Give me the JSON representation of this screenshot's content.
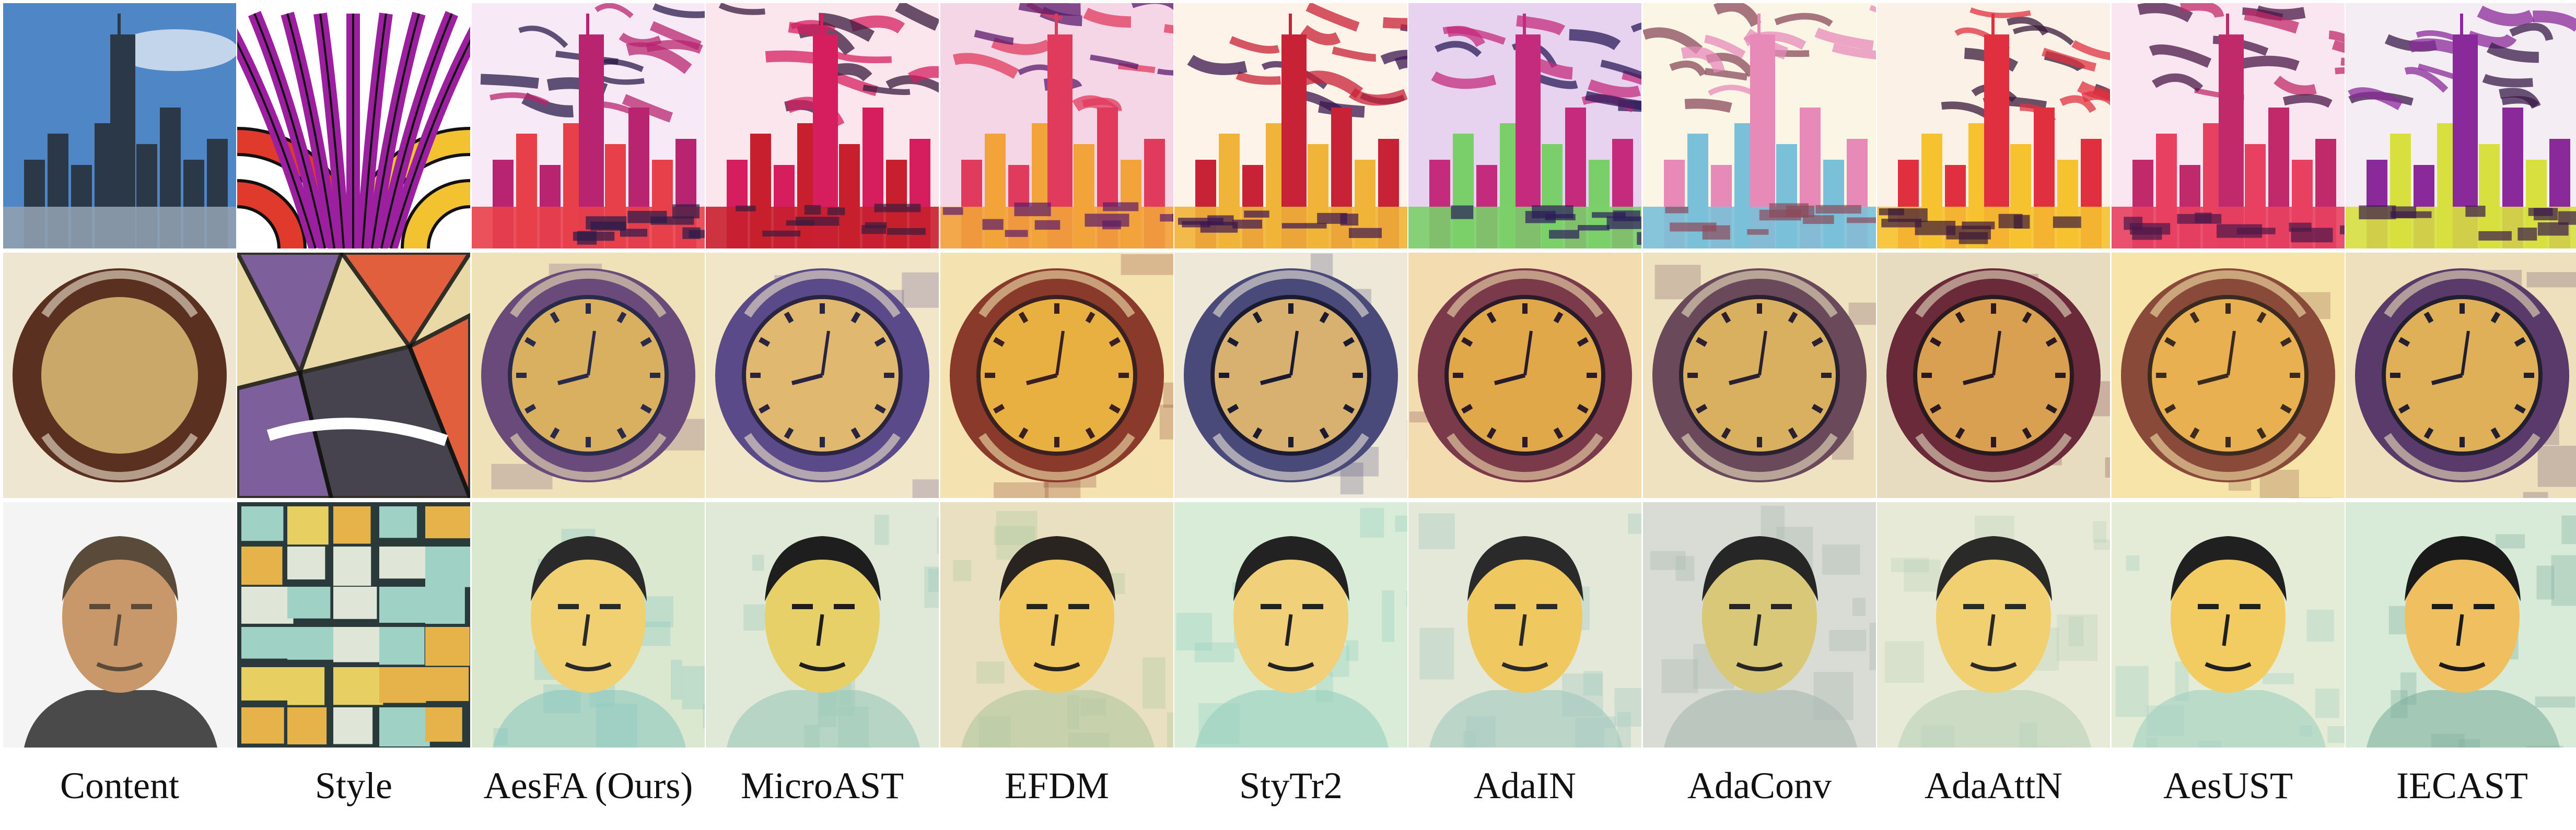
{
  "figure": {
    "columns": [
      {
        "label": "Content",
        "kind": "content"
      },
      {
        "label": "Style",
        "kind": "style"
      },
      {
        "label": "AesFA (Ours)",
        "kind": "result"
      },
      {
        "label": "MicroAST",
        "kind": "result"
      },
      {
        "label": "EFDM",
        "kind": "result"
      },
      {
        "label": "StyTr2",
        "kind": "result"
      },
      {
        "label": "AdaIN",
        "kind": "result"
      },
      {
        "label": "AdaConv",
        "kind": "result"
      },
      {
        "label": "AdaAttN",
        "kind": "result"
      },
      {
        "label": "AesUST",
        "kind": "result"
      },
      {
        "label": "IECAST",
        "kind": "result"
      }
    ],
    "rows": [
      {
        "subject": "city-skyline",
        "style_pattern": "curved-stripes",
        "content_palette": [
          "#4f86c6",
          "#2b3848",
          "#8fa0b0"
        ],
        "style_palette": [
          "#9b1f9e",
          "#e03a2d",
          "#f2c230",
          "#111111"
        ],
        "result_palettes": [
          [
            "#f7e9f5",
            "#b8246f",
            "#e8404a",
            "#2a1b4a"
          ],
          [
            "#fbe6ee",
            "#d61e5f",
            "#c81f2e",
            "#3a1b3c"
          ],
          [
            "#f5d6e6",
            "#e03a5c",
            "#f2a33a",
            "#5b1b6b"
          ],
          [
            "#fdf3e8",
            "#c72236",
            "#f0b43a",
            "#3a1650"
          ],
          [
            "#e7d2ef",
            "#c42b7c",
            "#7bcf6a",
            "#2b1b5a"
          ],
          [
            "#fbf5e6",
            "#e78ab8",
            "#7ac0d8",
            "#8a4a5a"
          ],
          [
            "#fbf1e6",
            "#e03040",
            "#f6c230",
            "#3a1a3a"
          ],
          [
            "#fae6f0",
            "#c02a6a",
            "#e84060",
            "#4a1848"
          ],
          [
            "#f4eef4",
            "#8a2a9a",
            "#d8e040",
            "#3a1a4a"
          ]
        ]
      },
      {
        "subject": "clock",
        "style_pattern": "abstract-shards",
        "content_palette": [
          "#efe6d2",
          "#5a3020",
          "#c9a86a"
        ],
        "style_palette": [
          "#e8d9a6",
          "#6a4a9a",
          "#e04a2a",
          "#2a2a40"
        ],
        "result_palettes": [
          [
            "#f0e2b8",
            "#6a4a7a",
            "#d9b060",
            "#2a2a4a"
          ],
          [
            "#f2e6c8",
            "#5a4a8a",
            "#e0b870",
            "#2a2440"
          ],
          [
            "#f4e2b0",
            "#8a3a2a",
            "#e8b040",
            "#3a2020"
          ],
          [
            "#eee8d8",
            "#4a4a7a",
            "#d8b070",
            "#1a1a30"
          ],
          [
            "#f2dcb0",
            "#7a3a4a",
            "#e0a848",
            "#2a1a2a"
          ],
          [
            "#efe2c0",
            "#6a4a5a",
            "#d8b060",
            "#2a2030"
          ],
          [
            "#e8dcc0",
            "#6a2a3a",
            "#d8a050",
            "#2a1a20"
          ],
          [
            "#f6e4a8",
            "#8a4a3a",
            "#e8b050",
            "#3a2a20"
          ],
          [
            "#eee0bc",
            "#5a3a6a",
            "#e0b058",
            "#222030"
          ]
        ]
      },
      {
        "subject": "portrait",
        "style_pattern": "rectangle-grid",
        "content_palette": [
          "#f4f4f4",
          "#c9986a",
          "#5a4a3a"
        ],
        "style_palette": [
          "#e8cf62",
          "#9fd1c4",
          "#e6b24a",
          "#2a3a3a"
        ],
        "result_palettes": [
          [
            "#dbe8d0",
            "#f0d070",
            "#2a2a2a",
            "#8cc8c0"
          ],
          [
            "#e0e8d8",
            "#e8d068",
            "#1e1e1e",
            "#9ac8b8"
          ],
          [
            "#e8e0c0",
            "#f2c860",
            "#2a2420",
            "#b0c8a0"
          ],
          [
            "#d8ecd8",
            "#f0d078",
            "#222222",
            "#98d0c0"
          ],
          [
            "#e4e8d8",
            "#f0c860",
            "#2a2a2a",
            "#a0c8c0"
          ],
          [
            "#d8dcd4",
            "#d8c878",
            "#262626",
            "#a8b8b0"
          ],
          [
            "#e8ead8",
            "#f0d070",
            "#2a2a28",
            "#b8d0b8"
          ],
          [
            "#e4ecd8",
            "#f2cc60",
            "#202020",
            "#a0d0c0"
          ],
          [
            "#d8ead8",
            "#f0c060",
            "#1a1a1a",
            "#80b0a0"
          ]
        ]
      }
    ]
  }
}
